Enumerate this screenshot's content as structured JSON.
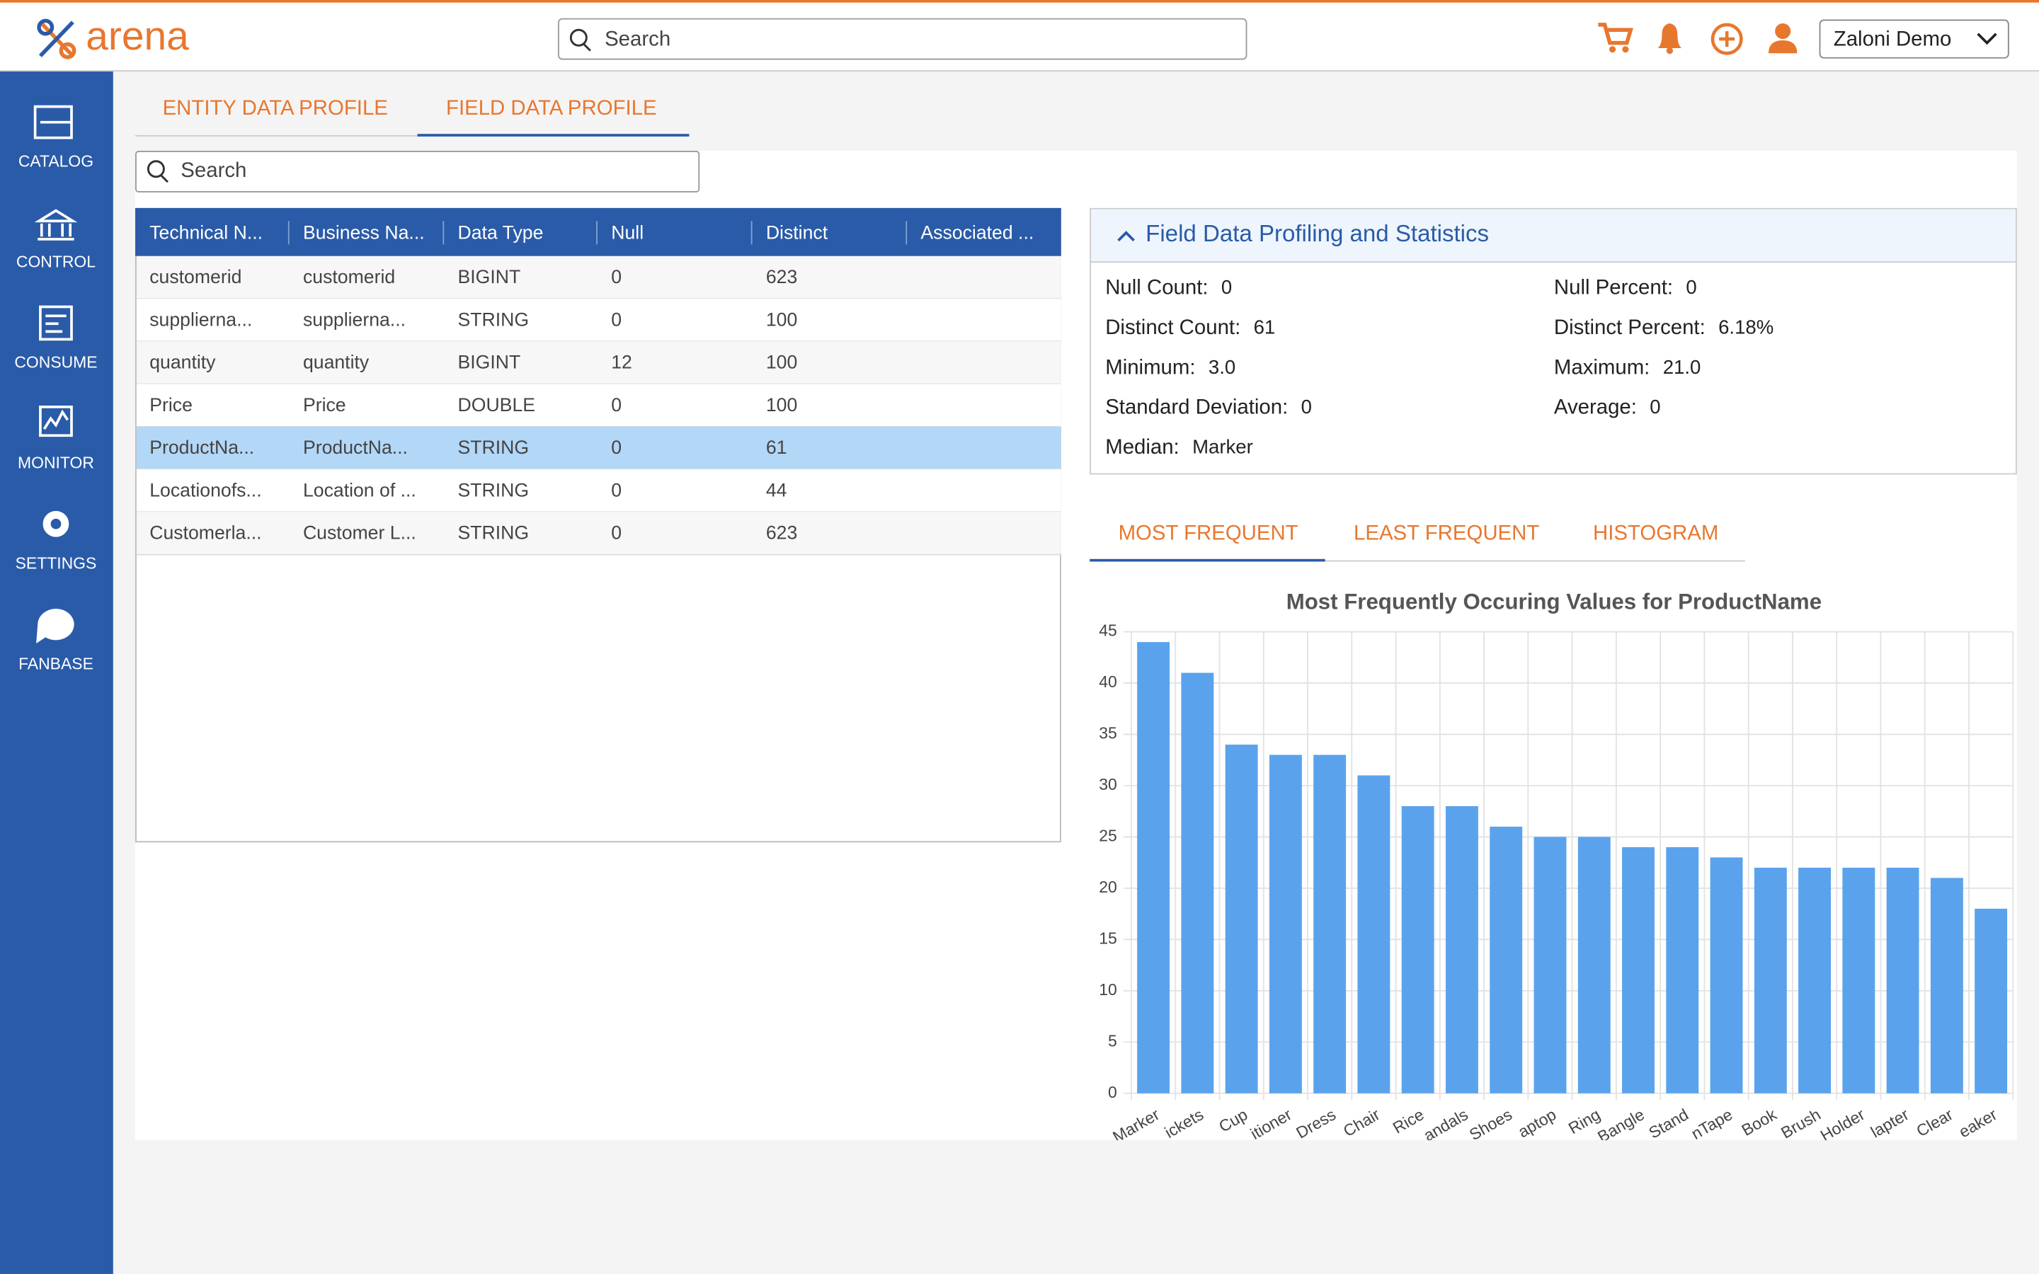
{
  "header": {
    "logo": "arena",
    "search_placeholder": "Search",
    "user": "Zaloni Demo"
  },
  "sidebar": [
    "CATALOG",
    "CONTROL",
    "CONSUME",
    "MONITOR",
    "SETTINGS",
    "FANBASE"
  ],
  "tabs": [
    "ENTITY DATA PROFILE",
    "FIELD DATA PROFILE"
  ],
  "search_placeholder": "Search",
  "table": {
    "columns": [
      "Technical N...",
      "Business Na...",
      "Data Type",
      "Null",
      "Distinct",
      "Associated ..."
    ],
    "rows": [
      [
        "customerid",
        "customerid",
        "BIGINT",
        0,
        623
      ],
      [
        "supplierna...",
        "supplierna...",
        "STRING",
        0,
        100
      ],
      [
        "quantity",
        "quantity",
        "BIGINT",
        12,
        100
      ],
      [
        "Price",
        "Price",
        "DOUBLE",
        0,
        100
      ],
      [
        "ProductNa...",
        "ProductNa...",
        "STRING",
        0,
        61
      ],
      [
        "Locationofs...",
        "Location of ...",
        "STRING",
        0,
        44
      ],
      [
        "Customerla...",
        "Customer L...",
        "STRING",
        0,
        623
      ]
    ]
  },
  "stats": {
    "title": "Field Data Profiling and Statistics",
    "items": [
      {
        "label": "Null Count:",
        "value": "0"
      },
      {
        "label": "Null Percent:",
        "value": "0"
      },
      {
        "label": "Distinct Count:",
        "value": "61"
      },
      {
        "label": "Distinct Percent:",
        "value": "6.18%"
      },
      {
        "label": "Minimum:",
        "value": "3.0"
      },
      {
        "label": "Maximum:",
        "value": "21.0"
      },
      {
        "label": "Standard Deviation:",
        "value": "0"
      },
      {
        "label": "Average:",
        "value": "0"
      },
      {
        "label": "Median:",
        "value": "Marker"
      }
    ]
  },
  "chart_tabs": [
    "MOST FREQUENT",
    "LEAST FREQUENT",
    "HISTOGRAM"
  ],
  "chart_data": {
    "type": "bar",
    "title": "Most Frequently Occuring Values for ProductName",
    "categories": [
      "Marker",
      "ickets",
      "Cup",
      "itioner",
      "Dress",
      "Chair",
      "Rice",
      "andals",
      "Shoes",
      "aptop",
      "Ring",
      "Bangle",
      "Stand",
      "nTape",
      "Book",
      "Brush",
      "Holder",
      "lapter",
      "Clear",
      "eaker"
    ],
    "values": [
      44,
      41,
      34,
      33,
      33,
      31,
      28,
      28,
      26,
      25,
      25,
      24,
      24,
      23,
      22,
      22,
      22,
      22,
      21,
      18
    ],
    "color": "#5aa3ec",
    "ylim": [
      0,
      45
    ],
    "yticks": [
      0,
      5,
      10,
      15,
      20,
      25,
      30,
      35,
      40,
      45
    ],
    "grid": true
  }
}
